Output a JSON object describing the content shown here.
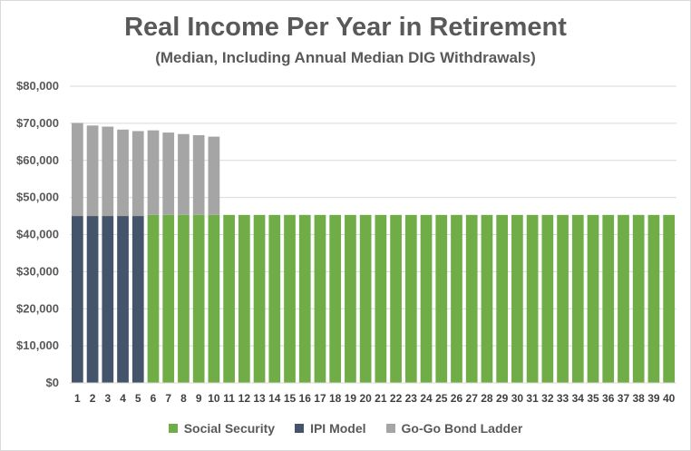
{
  "chart_data": {
    "type": "bar",
    "stacked": true,
    "title": "Real Income Per Year in Retirement",
    "subtitle": "(Median, Including Annual Median DIG Withdrawals)",
    "xlabel": "",
    "ylabel": "",
    "ylim": [
      0,
      80000
    ],
    "yticks": [
      "$0",
      "$10,000",
      "$20,000",
      "$30,000",
      "$40,000",
      "$50,000",
      "$60,000",
      "$70,000",
      "$80,000"
    ],
    "grid": true,
    "legend_position": "bottom",
    "categories": [
      "1",
      "2",
      "3",
      "4",
      "5",
      "6",
      "7",
      "8",
      "9",
      "10",
      "11",
      "12",
      "13",
      "14",
      "15",
      "16",
      "17",
      "18",
      "19",
      "20",
      "21",
      "22",
      "23",
      "24",
      "25",
      "26",
      "27",
      "28",
      "29",
      "30",
      "31",
      "32",
      "33",
      "34",
      "35",
      "36",
      "37",
      "38",
      "39",
      "40"
    ],
    "series": [
      {
        "name": "Social Security",
        "color": "#70ad47",
        "values": [
          0,
          0,
          0,
          0,
          0,
          45300,
          45300,
          45300,
          45300,
          45300,
          45300,
          45300,
          45300,
          45300,
          45300,
          45300,
          45300,
          45300,
          45300,
          45300,
          45300,
          45300,
          45300,
          45300,
          45300,
          45300,
          45300,
          45300,
          45300,
          45300,
          45300,
          45300,
          45300,
          45300,
          45300,
          45300,
          45300,
          45300,
          45300,
          45300
        ]
      },
      {
        "name": "IPI Model",
        "color": "#44546a",
        "values": [
          45000,
          45000,
          45000,
          45000,
          45000,
          0,
          0,
          0,
          0,
          0,
          0,
          0,
          0,
          0,
          0,
          0,
          0,
          0,
          0,
          0,
          0,
          0,
          0,
          0,
          0,
          0,
          0,
          0,
          0,
          0,
          0,
          0,
          0,
          0,
          0,
          0,
          0,
          0,
          0,
          0
        ]
      },
      {
        "name": "Go-Go Bond Ladder",
        "color": "#a5a5a5",
        "values": [
          25100,
          24400,
          24100,
          23300,
          22900,
          22800,
          22200,
          21800,
          21500,
          21100,
          0,
          0,
          0,
          0,
          0,
          0,
          0,
          0,
          0,
          0,
          0,
          0,
          0,
          0,
          0,
          0,
          0,
          0,
          0,
          0,
          0,
          0,
          0,
          0,
          0,
          0,
          0,
          0,
          0,
          0
        ]
      }
    ]
  }
}
